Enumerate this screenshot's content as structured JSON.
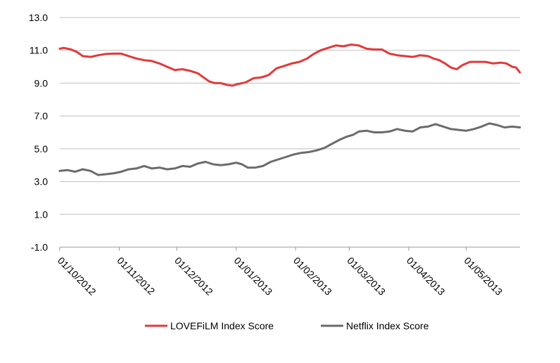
{
  "chart_data": {
    "type": "line",
    "ylim": [
      -1.0,
      13.0
    ],
    "y_ticks": [
      "13.0",
      "11.0",
      "9.0",
      "7.0",
      "5.0",
      "3.0",
      "1.0",
      "-1.0"
    ],
    "x_ticks": [
      "01/10/2012",
      "01/11/2012",
      "01/12/2012",
      "01/01/2013",
      "01/02/2013",
      "01/03/2013",
      "01/04/2013",
      "01/05/2013"
    ],
    "x_range": [
      "2012-10-01",
      "2013-05-29"
    ],
    "grid": "horizontal",
    "legend_position": "bottom",
    "series": [
      {
        "name": "LOVEFiLM Index Score",
        "color": "#e03a3a",
        "points": [
          [
            "2012-10-01",
            11.1
          ],
          [
            "2012-10-03",
            11.15
          ],
          [
            "2012-10-07",
            11.05
          ],
          [
            "2012-10-10",
            10.9
          ],
          [
            "2012-10-13",
            10.65
          ],
          [
            "2012-10-17",
            10.6
          ],
          [
            "2012-10-21",
            10.7
          ],
          [
            "2012-10-25",
            10.78
          ],
          [
            "2012-10-29",
            10.8
          ],
          [
            "2012-11-02",
            10.8
          ],
          [
            "2012-11-06",
            10.65
          ],
          [
            "2012-11-10",
            10.5
          ],
          [
            "2012-11-14",
            10.4
          ],
          [
            "2012-11-18",
            10.35
          ],
          [
            "2012-11-22",
            10.2
          ],
          [
            "2012-11-26",
            10.0
          ],
          [
            "2012-11-30",
            9.8
          ],
          [
            "2012-12-04",
            9.85
          ],
          [
            "2012-12-08",
            9.75
          ],
          [
            "2012-12-12",
            9.6
          ],
          [
            "2012-12-15",
            9.35
          ],
          [
            "2012-12-18",
            9.1
          ],
          [
            "2012-12-21",
            9.0
          ],
          [
            "2012-12-24",
            9.0
          ],
          [
            "2012-12-27",
            8.9
          ],
          [
            "2012-12-30",
            8.85
          ],
          [
            "2013-01-02",
            8.95
          ],
          [
            "2013-01-06",
            9.05
          ],
          [
            "2013-01-10",
            9.3
          ],
          [
            "2013-01-14",
            9.35
          ],
          [
            "2013-01-18",
            9.5
          ],
          [
            "2013-01-22",
            9.9
          ],
          [
            "2013-01-26",
            10.05
          ],
          [
            "2013-01-30",
            10.2
          ],
          [
            "2013-02-03",
            10.3
          ],
          [
            "2013-02-07",
            10.5
          ],
          [
            "2013-02-10",
            10.75
          ],
          [
            "2013-02-14",
            11.0
          ],
          [
            "2013-02-18",
            11.15
          ],
          [
            "2013-02-22",
            11.3
          ],
          [
            "2013-02-26",
            11.25
          ],
          [
            "2013-03-02",
            11.35
          ],
          [
            "2013-03-06",
            11.3
          ],
          [
            "2013-03-10",
            11.1
          ],
          [
            "2013-03-14",
            11.05
          ],
          [
            "2013-03-18",
            11.05
          ],
          [
            "2013-03-22",
            10.8
          ],
          [
            "2013-03-26",
            10.7
          ],
          [
            "2013-03-30",
            10.65
          ],
          [
            "2013-04-03",
            10.6
          ],
          [
            "2013-04-07",
            10.7
          ],
          [
            "2013-04-11",
            10.65
          ],
          [
            "2013-04-14",
            10.5
          ],
          [
            "2013-04-17",
            10.4
          ],
          [
            "2013-04-20",
            10.2
          ],
          [
            "2013-04-23",
            9.95
          ],
          [
            "2013-04-26",
            9.85
          ],
          [
            "2013-04-29",
            10.1
          ],
          [
            "2013-05-03",
            10.3
          ],
          [
            "2013-05-07",
            10.3
          ],
          [
            "2013-05-11",
            10.3
          ],
          [
            "2013-05-15",
            10.2
          ],
          [
            "2013-05-19",
            10.25
          ],
          [
            "2013-05-22",
            10.2
          ],
          [
            "2013-05-25",
            10.0
          ],
          [
            "2013-05-27",
            9.95
          ],
          [
            "2013-05-29",
            9.65
          ]
        ]
      },
      {
        "name": "Netflix Index Score",
        "color": "#6b6b6b",
        "points": [
          [
            "2012-10-01",
            3.65
          ],
          [
            "2012-10-05",
            3.7
          ],
          [
            "2012-10-09",
            3.6
          ],
          [
            "2012-10-13",
            3.75
          ],
          [
            "2012-10-17",
            3.65
          ],
          [
            "2012-10-21",
            3.4
          ],
          [
            "2012-10-25",
            3.45
          ],
          [
            "2012-10-29",
            3.5
          ],
          [
            "2012-11-02",
            3.6
          ],
          [
            "2012-11-06",
            3.75
          ],
          [
            "2012-11-10",
            3.8
          ],
          [
            "2012-11-14",
            3.95
          ],
          [
            "2012-11-18",
            3.8
          ],
          [
            "2012-11-22",
            3.85
          ],
          [
            "2012-11-26",
            3.75
          ],
          [
            "2012-11-30",
            3.8
          ],
          [
            "2012-12-04",
            3.95
          ],
          [
            "2012-12-08",
            3.9
          ],
          [
            "2012-12-12",
            4.1
          ],
          [
            "2012-12-16",
            4.2
          ],
          [
            "2012-12-20",
            4.05
          ],
          [
            "2012-12-24",
            4.0
          ],
          [
            "2012-12-28",
            4.05
          ],
          [
            "2013-01-01",
            4.15
          ],
          [
            "2013-01-04",
            4.05
          ],
          [
            "2013-01-07",
            3.85
          ],
          [
            "2013-01-11",
            3.85
          ],
          [
            "2013-01-15",
            3.95
          ],
          [
            "2013-01-19",
            4.2
          ],
          [
            "2013-01-23",
            4.35
          ],
          [
            "2013-01-27",
            4.5
          ],
          [
            "2013-01-31",
            4.65
          ],
          [
            "2013-02-04",
            4.75
          ],
          [
            "2013-02-08",
            4.8
          ],
          [
            "2013-02-12",
            4.9
          ],
          [
            "2013-02-16",
            5.05
          ],
          [
            "2013-02-20",
            5.3
          ],
          [
            "2013-02-24",
            5.55
          ],
          [
            "2013-02-28",
            5.75
          ],
          [
            "2013-03-03",
            5.85
          ],
          [
            "2013-03-06",
            6.05
          ],
          [
            "2013-03-10",
            6.1
          ],
          [
            "2013-03-14",
            6.0
          ],
          [
            "2013-03-18",
            6.0
          ],
          [
            "2013-03-22",
            6.05
          ],
          [
            "2013-03-26",
            6.2
          ],
          [
            "2013-03-30",
            6.1
          ],
          [
            "2013-04-03",
            6.05
          ],
          [
            "2013-04-07",
            6.3
          ],
          [
            "2013-04-11",
            6.35
          ],
          [
            "2013-04-15",
            6.5
          ],
          [
            "2013-04-19",
            6.35
          ],
          [
            "2013-04-23",
            6.2
          ],
          [
            "2013-04-27",
            6.15
          ],
          [
            "2013-05-01",
            6.1
          ],
          [
            "2013-05-05",
            6.2
          ],
          [
            "2013-05-09",
            6.35
          ],
          [
            "2013-05-13",
            6.55
          ],
          [
            "2013-05-17",
            6.45
          ],
          [
            "2013-05-21",
            6.3
          ],
          [
            "2013-05-25",
            6.35
          ],
          [
            "2013-05-29",
            6.3
          ]
        ]
      }
    ]
  }
}
